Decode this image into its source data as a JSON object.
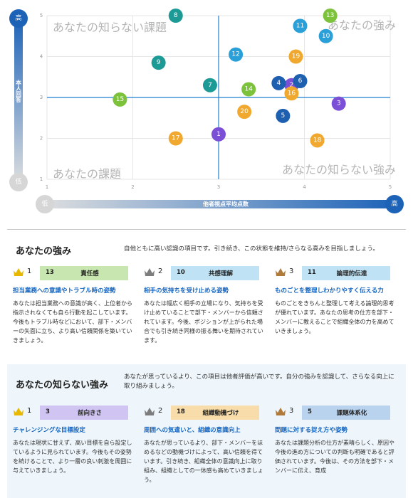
{
  "chart_data": {
    "type": "scatter",
    "xlabel": "他者視点平均点数",
    "ylabel": "本人回答",
    "x_low": "低",
    "x_high": "高",
    "y_low": "低",
    "y_high": "高",
    "xlim": [
      1,
      5
    ],
    "ylim": [
      1,
      5
    ],
    "x_ticks": [
      "1",
      "2",
      "3",
      "4",
      "5"
    ],
    "y_ticks": [
      "1",
      "2",
      "3",
      "4",
      "5"
    ],
    "crosshair": {
      "x": 3,
      "y": 3
    },
    "quadrant_labels": {
      "top_left": "あなたの知らない課題",
      "top_right": "あなたの強み",
      "bottom_left": "あなたの課題",
      "bottom_right": "あなたの知らない強み"
    },
    "points": [
      {
        "label": "1",
        "x": 3.0,
        "y": 2.1,
        "color": "#7b4fd6"
      },
      {
        "label": "2",
        "x": 3.85,
        "y": 3.3,
        "color": "#7b4fd6"
      },
      {
        "label": "3",
        "x": 4.4,
        "y": 2.85,
        "color": "#7b4fd6"
      },
      {
        "label": "4",
        "x": 3.7,
        "y": 3.35,
        "color": "#1f5fb0"
      },
      {
        "label": "5",
        "x": 3.75,
        "y": 2.55,
        "color": "#1f5fb0"
      },
      {
        "label": "6",
        "x": 3.95,
        "y": 3.4,
        "color": "#1f5fb0"
      },
      {
        "label": "7",
        "x": 2.9,
        "y": 3.3,
        "color": "#1b9a96"
      },
      {
        "label": "8",
        "x": 2.5,
        "y": 5.0,
        "color": "#1b9a96"
      },
      {
        "label": "9",
        "x": 2.3,
        "y": 3.85,
        "color": "#1b9a96"
      },
      {
        "label": "10",
        "x": 4.25,
        "y": 4.5,
        "color": "#2a9fd8"
      },
      {
        "label": "11",
        "x": 3.95,
        "y": 4.75,
        "color": "#2a9fd8"
      },
      {
        "label": "12",
        "x": 3.2,
        "y": 4.05,
        "color": "#2a9fd8"
      },
      {
        "label": "13",
        "x": 4.3,
        "y": 5.0,
        "color": "#7cc23a"
      },
      {
        "label": "14",
        "x": 3.35,
        "y": 3.2,
        "color": "#7cc23a"
      },
      {
        "label": "15",
        "x": 1.85,
        "y": 2.95,
        "color": "#7cc23a"
      },
      {
        "label": "16",
        "x": 3.85,
        "y": 3.1,
        "color": "#f0a92e"
      },
      {
        "label": "17",
        "x": 2.5,
        "y": 2.0,
        "color": "#f0a92e"
      },
      {
        "label": "18",
        "x": 4.15,
        "y": 1.95,
        "color": "#f0a92e"
      },
      {
        "label": "19",
        "x": 3.9,
        "y": 4.0,
        "color": "#f0a92e"
      },
      {
        "label": "20",
        "x": 3.3,
        "y": 2.65,
        "color": "#f0a92e"
      }
    ]
  },
  "strengths": {
    "title": "あなたの強み",
    "desc": "自他ともに高い認識の項目です。引き続き、この状態を維持/さらなる高みを目指しましょう。",
    "cards": [
      {
        "rank": "1",
        "num": "13",
        "label": "責任感",
        "badge_color": "#c8e6b0",
        "crown_color": "#e8b800",
        "head": "担当業務への意識やトラブル時の姿勢",
        "body": "あなたは担当業務への意識が高く、上位者から指示されなくても自ら行動を起こしています。今後もトラブル時などにおいて、部下・メンバーの矢面に立ち、より高い信頼関係を築いていきましょう。"
      },
      {
        "rank": "2",
        "num": "10",
        "label": "共感理解",
        "badge_color": "#bfe3f5",
        "crown_color": "#7d7d7d",
        "head": "相手の気持ちを受け止める姿勢",
        "body": "あなたは幅広く相手の立場になり、気持ちを受け止めていることで部下・メンバーから信頼されています。今後、ポジションが上がられた場合でも引き続き同様の振る舞いを期待されています。"
      },
      {
        "rank": "3",
        "num": "11",
        "label": "論理的伝達",
        "badge_color": "#bfe3f5",
        "crown_color": "#b07a3a",
        "head": "ものごとを整理しわかりやすく伝える力",
        "body": "ものごとをきちんと整理して考える論理的思考が優れています。あなたの思考の仕方を部下・メンバーに教えることで組織全体の力を高めていきましょう。"
      }
    ]
  },
  "hidden_strengths": {
    "title": "あなたの知らない強み",
    "desc": "あなたが思っているより、この項目は他者評価が高いです。自分の強みを認識して、さらなる向上に取り組みましょう。",
    "cards": [
      {
        "rank": "1",
        "num": "3",
        "label": "前向きさ",
        "badge_color": "#cfc4f2",
        "crown_color": "#e8b800",
        "head": "チャレンジングな目標設定",
        "body": "あなたは現状に甘えず、高い目標を自ら設定しているように見られています。今後もその姿勢を続けることで、より一層の良い刺激を周囲に与えていきましょう。"
      },
      {
        "rank": "2",
        "num": "18",
        "label": "組織動機づけ",
        "badge_color": "#f8dcaa",
        "crown_color": "#7d7d7d",
        "head": "周囲への気遣いと、組織の意識向上",
        "body": "あなたが思っているより、部下・メンバーをほめるなどの動機づけによって、高い信頼を得ています。引き続き、組織全体の意識向上に取り組み、組織としての一体感も高めていきましょう。"
      },
      {
        "rank": "3",
        "num": "5",
        "label": "課題体系化",
        "badge_color": "#b9d2ee",
        "crown_color": "#b07a3a",
        "head": "問題に対する捉え方や姿勢",
        "body": "あなたは課題分析の仕方が素晴らしく、原因や今後の進め方についての判断も明確であると評価されています。今後は、その方法を部下・メンバーに伝え、育成"
      }
    ]
  }
}
